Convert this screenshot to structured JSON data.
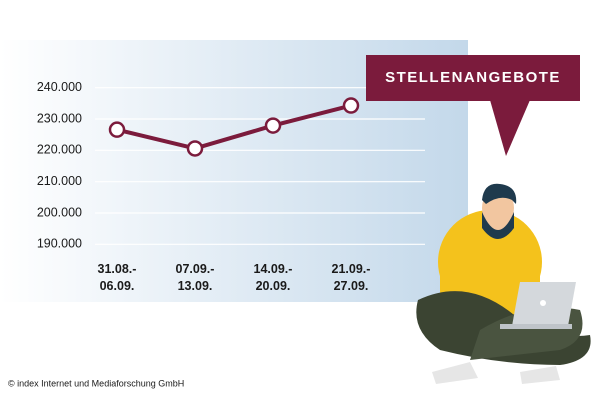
{
  "chart_data": {
    "type": "line",
    "title": "STELLENANGEBOTE",
    "categories": [
      [
        "31.08.-",
        "06.09."
      ],
      [
        "07.09.-",
        "13.09."
      ],
      [
        "14.09.-",
        "20.09."
      ],
      [
        "21.09.-",
        "27.09."
      ]
    ],
    "values": [
      226600,
      220600,
      227900,
      234300
    ],
    "color": "#7b1b3c",
    "ylim": [
      185000,
      245000
    ],
    "yticks": [
      {
        "value": 190000,
        "label": "190.000"
      },
      {
        "value": 200000,
        "label": "200.000"
      },
      {
        "value": 210000,
        "label": "210.000"
      },
      {
        "value": 220000,
        "label": "220.000"
      },
      {
        "value": 230000,
        "label": "230.000"
      },
      {
        "value": 240000,
        "label": "240.000"
      }
    ],
    "grid": true,
    "source": "© index Internet und Mediaforschung GmbH"
  }
}
